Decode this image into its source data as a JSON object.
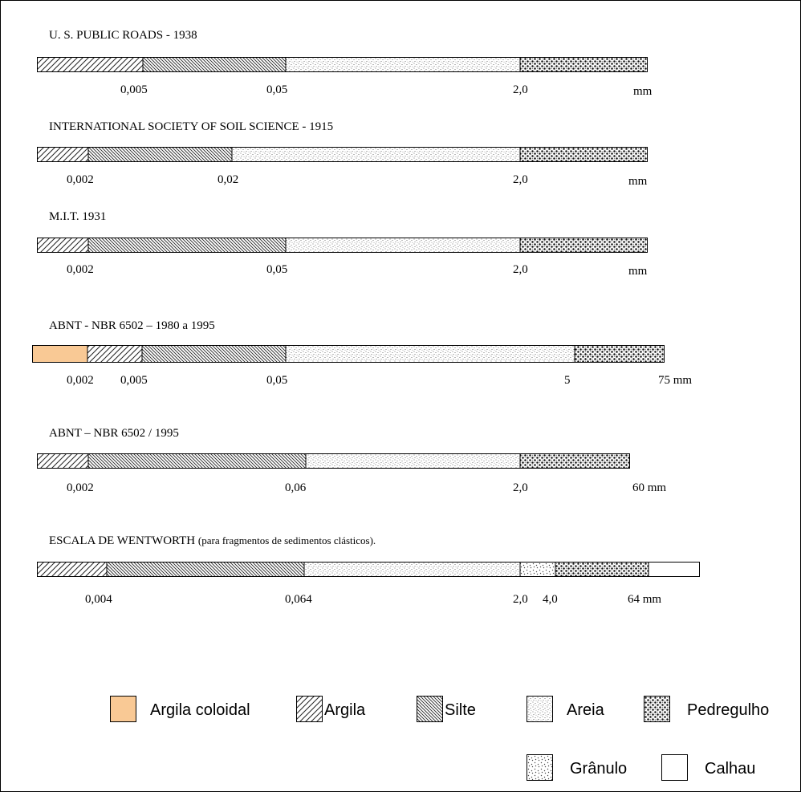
{
  "scales": [
    {
      "title": "U. S. PUBLIC ROADS - 1938",
      "ticks": [
        "0,005",
        "0,05",
        "2,0",
        "mm"
      ]
    },
    {
      "title": "INTERNATIONAL SOCIETY OF SOIL SCIENCE - 1915",
      "ticks": [
        "0,002",
        "0,02",
        "2,0",
        "mm"
      ]
    },
    {
      "title": "M.I.T.  1931",
      "ticks": [
        "0,002",
        "0,05",
        "2,0",
        "mm"
      ]
    },
    {
      "title": "ABNT - NBR 6502 – 1980 a 1995",
      "ticks": [
        "0,002",
        "0,005",
        "0,05",
        "5",
        "75 mm"
      ]
    },
    {
      "title": "ABNT – NBR 6502 / 1995",
      "ticks": [
        "0,002",
        "0,06",
        "2,0",
        "60 mm"
      ]
    },
    {
      "title": "ESCALA DE WENTWORTH",
      "title_suffix": "(para fragmentos de sedimentos clásticos).",
      "ticks": [
        "0,004",
        "0,064",
        "2,0",
        "4,0",
        "64 mm"
      ]
    }
  ],
  "legend": {
    "argila_coloidal": "Argila coloidal",
    "argila": "Argila",
    "silte": "Silte",
    "areia": "Areia",
    "pedregulho": "Pedregulho",
    "granulo": "Grânulo",
    "calhau": "Calhau"
  },
  "colors": {
    "argila_coloidal": "#f9c995",
    "border": "#000000"
  }
}
